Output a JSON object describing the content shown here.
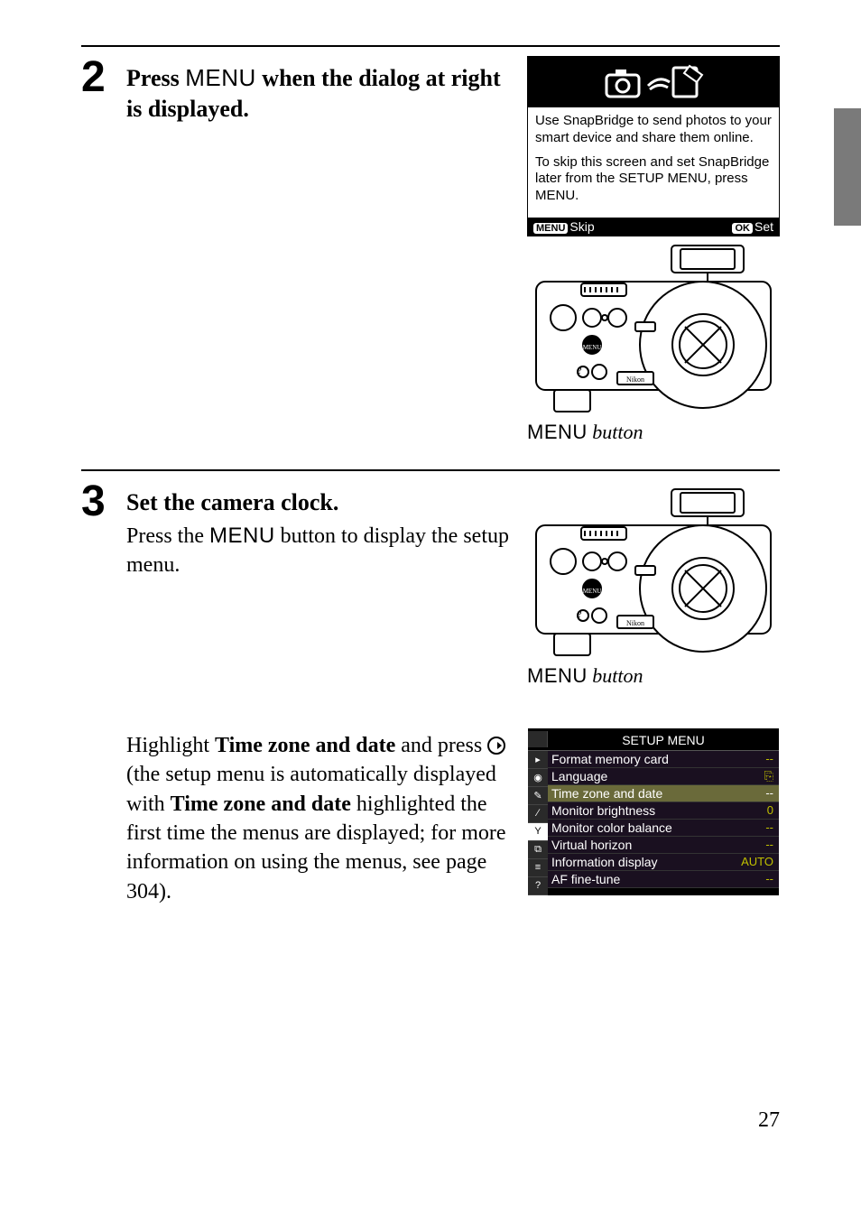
{
  "page_number": "27",
  "side_tab_color": "#7a7a7a",
  "step2": {
    "number": "2",
    "title_pre": "Press ",
    "title_menu": "MENU",
    "title_post": " when the dialog at right is displayed.",
    "dialog": {
      "p1": "Use SnapBridge to send photos to your smart device and share them online.",
      "p2": "To skip this screen and set SnapBridge later from the SETUP MENU, press MENU.",
      "footer_left_pill": "MENU",
      "footer_left": "Skip",
      "footer_right_pill": "OK",
      "footer_right": "Set"
    },
    "caption_menu": "MENU",
    "caption_rest": " button"
  },
  "step3": {
    "number": "3",
    "title": "Set the camera clock.",
    "body_pre": "Press the ",
    "body_menu": "MENU",
    "body_post": " button to display the setup menu.",
    "caption_menu": "MENU",
    "caption_rest": " button",
    "highlight_p1": "Highlight ",
    "highlight_b1": "Time zone and date",
    "highlight_p2": " and press ",
    "highlight_p3": " (the setup menu is automatically displayed with ",
    "highlight_b2": "Time zone and date",
    "highlight_p4": " highlighted the first time the menus are displayed; for more information on using the menus, see page 304).",
    "setup_menu": {
      "title": "SETUP MENU",
      "rows": [
        {
          "label": "Format memory card",
          "value": "--",
          "highlight": false
        },
        {
          "label": "Language",
          "value": "⎘",
          "highlight": false
        },
        {
          "label": "Time zone and date",
          "value": "--",
          "highlight": true
        },
        {
          "label": "Monitor brightness",
          "value": "0",
          "highlight": false
        },
        {
          "label": "Monitor color balance",
          "value": "--",
          "highlight": false
        },
        {
          "label": "Virtual horizon",
          "value": "--",
          "highlight": false
        },
        {
          "label": "Information display",
          "value": "AUTO",
          "highlight": false
        },
        {
          "label": "AF fine-tune",
          "value": "--",
          "highlight": false
        }
      ],
      "side_icons": [
        "▸",
        "◉",
        "✎",
        "∕",
        "Y",
        "⧉",
        "≡",
        "?"
      ],
      "selected_icon_index": 4
    }
  }
}
